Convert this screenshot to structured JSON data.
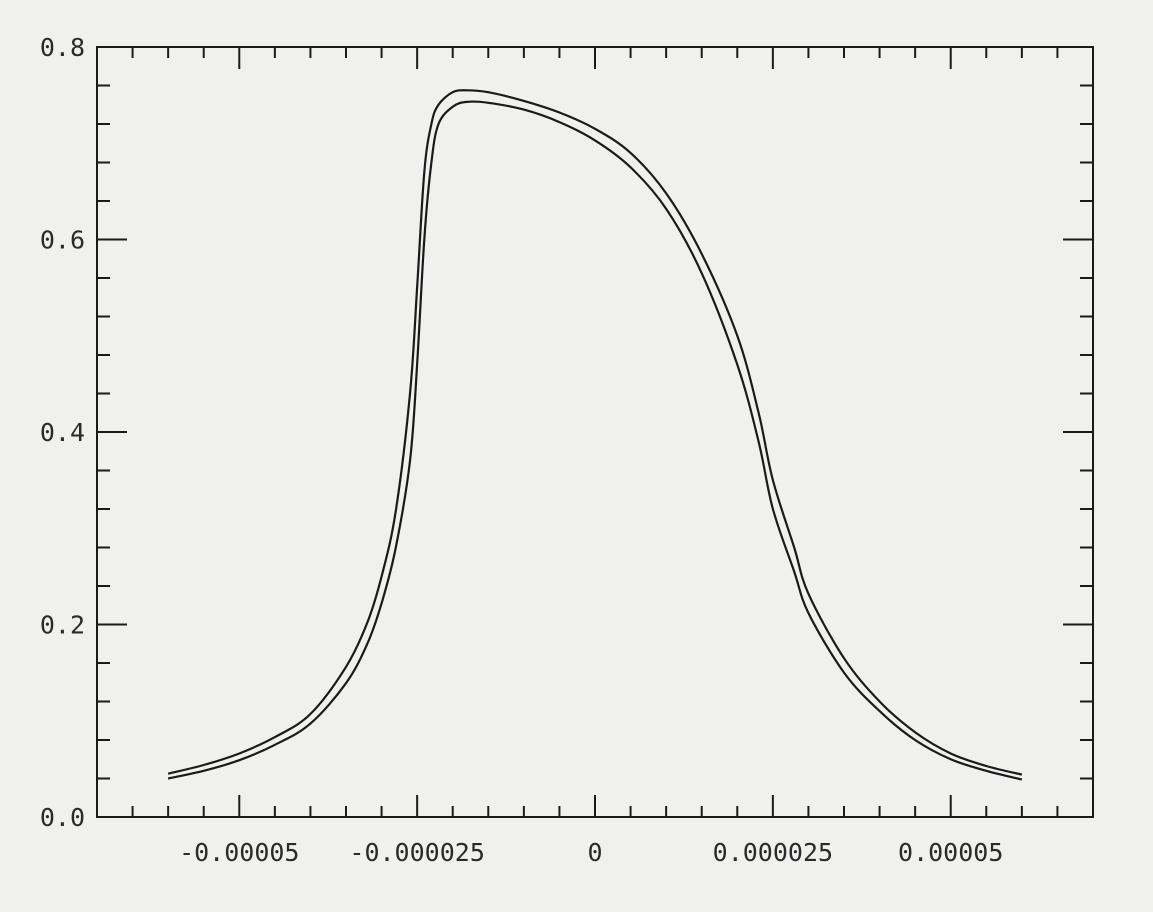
{
  "chart_data": {
    "type": "line",
    "title": "",
    "xlabel": "",
    "ylabel": "",
    "xlim": [
      -7e-05,
      7e-05
    ],
    "ylim": [
      0.0,
      0.8
    ],
    "grid": false,
    "legend": "none",
    "x_ticks": [
      -5e-05,
      -2.5e-05,
      0,
      2.5e-05,
      5e-05
    ],
    "x_tick_labels": [
      "-0.00005",
      "-0.000025",
      "0",
      "0.000025",
      "0.00005"
    ],
    "y_ticks": [
      0.0,
      0.2,
      0.4,
      0.6,
      0.8
    ],
    "y_tick_labels": [
      "0.0",
      "0.2",
      "0.4",
      "0.6",
      "0.8"
    ],
    "x_minor_step": 5e-06,
    "y_minor_step": 0.04,
    "line_color": "#1a1a1a",
    "series": [
      {
        "x": [
          -6e-05,
          -5.5e-05,
          -5e-05,
          -4.5e-05,
          -4e-05,
          -3.5e-05,
          -3.2e-05,
          -3e-05,
          -2.8e-05,
          -2.6e-05,
          -2.5e-05,
          -2.4e-05,
          -2.3e-05,
          -2.2e-05,
          -2e-05,
          -1.8e-05,
          -1.5e-05,
          -1e-05,
          -5e-06,
          0,
          5e-06,
          1e-05,
          1.5e-05,
          2e-05,
          2.3e-05,
          2.5e-05,
          2.8e-05,
          3e-05,
          3.5e-05,
          4e-05,
          4.5e-05,
          5e-05,
          5.5e-05,
          6e-05
        ],
        "values": [
          0.045,
          0.054,
          0.066,
          0.083,
          0.107,
          0.156,
          0.202,
          0.25,
          0.318,
          0.44,
          0.55,
          0.67,
          0.72,
          0.74,
          0.753,
          0.755,
          0.753,
          0.744,
          0.732,
          0.715,
          0.69,
          0.648,
          0.585,
          0.5,
          0.42,
          0.35,
          0.28,
          0.232,
          0.165,
          0.12,
          0.088,
          0.066,
          0.053,
          0.044
        ]
      },
      {
        "x": [
          -6e-05,
          -5.5e-05,
          -5e-05,
          -4.5e-05,
          -4e-05,
          -3.5e-05,
          -3.2e-05,
          -3e-05,
          -2.8e-05,
          -2.6e-05,
          -2.5e-05,
          -2.4e-05,
          -2.3e-05,
          -2.2e-05,
          -2e-05,
          -1.8e-05,
          -1.5e-05,
          -1e-05,
          -5e-06,
          0,
          5e-06,
          1e-05,
          1.5e-05,
          2e-05,
          2.3e-05,
          2.5e-05,
          2.8e-05,
          3e-05,
          3.5e-05,
          4e-05,
          4.5e-05,
          5e-05,
          5.5e-05,
          6e-05
        ],
        "values": [
          0.04,
          0.048,
          0.059,
          0.075,
          0.097,
          0.139,
          0.18,
          0.222,
          0.28,
          0.37,
          0.47,
          0.6,
          0.68,
          0.72,
          0.738,
          0.743,
          0.742,
          0.735,
          0.722,
          0.703,
          0.675,
          0.632,
          0.565,
          0.47,
          0.39,
          0.32,
          0.255,
          0.212,
          0.15,
          0.11,
          0.08,
          0.06,
          0.048,
          0.039
        ]
      }
    ]
  }
}
